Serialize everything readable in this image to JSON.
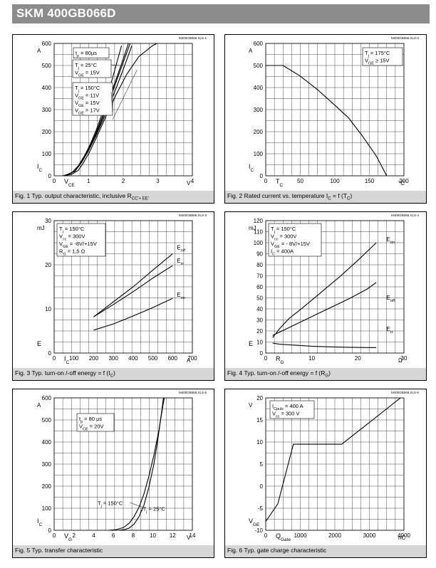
{
  "header": {
    "title": "SKM 400GB066D"
  },
  "chart_data": [
    {
      "id": "fig1",
      "type": "line",
      "file_ref": "M400GB066.XLS-1",
      "caption": "Fig. 1 Typ. output characteristic, inclusive R",
      "caption_sub": "CC'+ EE'",
      "xlim": [
        0,
        4
      ],
      "ylim": [
        0,
        600
      ],
      "xticks": [
        0,
        1,
        2,
        3,
        4
      ],
      "yticks": [
        0,
        100,
        200,
        300,
        400,
        500,
        600
      ],
      "xtick_labels": [
        "0",
        "1",
        "2",
        "3",
        "4"
      ],
      "ytick_labels": [
        "0",
        "100",
        "200",
        "300",
        "400",
        "500",
        "600"
      ],
      "xlabel_main": "V",
      "xlabel_sub": "CE",
      "xunit": "V",
      "ylabel_main": "I",
      "ylabel_sub": "C",
      "yunit": "A",
      "legend_boxes": [
        {
          "lines": [
            {
              "main": "t",
              "sub": "p",
              "rest": " = 80µs"
            }
          ]
        },
        {
          "lines": [
            {
              "main": "T",
              "sub": "j",
              "rest": " = 25°C"
            },
            {
              "main": "V",
              "sub": "GE",
              "rest": " = 15V"
            }
          ]
        },
        {
          "lines": [
            {
              "main": "T",
              "sub": "j",
              "rest": " = 150°C"
            },
            {
              "main": "V",
              "sub": "GE",
              "rest": " = 11V"
            },
            {
              "main": "V",
              "sub": "GE",
              "rest": " = 15V"
            },
            {
              "main": "V",
              "sub": "GE",
              "rest": " = 17V"
            }
          ]
        }
      ],
      "series": [
        {
          "points": [
            [
              0.25,
              0
            ],
            [
              0.5,
              6
            ],
            [
              0.7,
              25
            ],
            [
              0.85,
              60
            ],
            [
              1.0,
              100
            ],
            [
              1.2,
              165
            ],
            [
              1.5,
              270
            ],
            [
              1.8,
              370
            ],
            [
              2.1,
              460
            ],
            [
              2.45,
              540
            ],
            [
              2.85,
              590
            ],
            [
              3.2,
              618
            ]
          ]
        },
        {
          "points": [
            [
              0.3,
              0
            ],
            [
              0.6,
              22
            ],
            [
              0.8,
              62
            ],
            [
              1.0,
              115
            ],
            [
              1.2,
              178
            ],
            [
              1.4,
              248
            ],
            [
              1.6,
              322
            ],
            [
              1.8,
              400
            ],
            [
              2.0,
              482
            ],
            [
              2.25,
              590
            ]
          ]
        },
        {
          "points": [
            [
              0.3,
              0
            ],
            [
              0.6,
              20
            ],
            [
              0.8,
              62
            ],
            [
              1.0,
              117
            ],
            [
              1.2,
              184
            ],
            [
              1.4,
              260
            ],
            [
              1.6,
              342
            ],
            [
              1.8,
              428
            ],
            [
              2.0,
              515
            ],
            [
              2.2,
              600
            ]
          ]
        },
        {
          "points": [
            [
              0.3,
              0
            ],
            [
              0.6,
              22
            ],
            [
              0.8,
              64
            ],
            [
              1.0,
              120
            ],
            [
              1.2,
              190
            ],
            [
              1.4,
              270
            ],
            [
              1.6,
              355
            ],
            [
              1.8,
              440
            ],
            [
              2.0,
              530
            ],
            [
              2.15,
              600
            ]
          ]
        },
        {
          "points": [
            [
              0.25,
              0
            ],
            [
              0.5,
              12
            ],
            [
              0.7,
              45
            ],
            [
              0.9,
              97
            ],
            [
              1.05,
              145
            ],
            [
              1.2,
              200
            ],
            [
              1.35,
              265
            ],
            [
              1.5,
              340
            ],
            [
              1.65,
              420
            ],
            [
              1.8,
              505
            ],
            [
              1.95,
              590
            ]
          ]
        }
      ]
    },
    {
      "id": "fig2",
      "type": "line",
      "file_ref": "M400GB066.XLS-2",
      "caption": "Fig. 2 Rated current vs. temperature I",
      "caption_sub": "C",
      "caption_rest": " = f (T",
      "caption_sub2": "C",
      "caption_end": ")",
      "xlim": [
        0,
        200
      ],
      "ylim": [
        0,
        600
      ],
      "xticks": [
        0,
        50,
        100,
        150,
        200
      ],
      "yticks": [
        0,
        100,
        200,
        300,
        400,
        500,
        600
      ],
      "xtick_labels": [
        "0",
        "50",
        "100",
        "150",
        "200"
      ],
      "ytick_labels": [
        "0",
        "100",
        "200",
        "300",
        "400",
        "500",
        "600"
      ],
      "xlabel_main": "T",
      "xlabel_sub": "C",
      "xunit": "°C",
      "ylabel_main": "I",
      "ylabel_sub": "C",
      "yunit": "A",
      "legend_boxes": [
        {
          "lines": [
            {
              "main": "T",
              "sub": "j",
              "rest": " = 175°C"
            },
            {
              "main": "V",
              "sub": "GE",
              "rest": " ≥ 15V"
            }
          ]
        }
      ],
      "series": [
        {
          "points": [
            [
              0,
              500
            ],
            [
              25,
              500
            ],
            [
              50,
              452
            ],
            [
              75,
              390
            ],
            [
              100,
              320
            ],
            [
              120,
              262
            ],
            [
              140,
              180
            ],
            [
              160,
              90
            ],
            [
              175,
              0
            ]
          ]
        }
      ]
    },
    {
      "id": "fig3",
      "type": "line",
      "file_ref": "M400GB066.XLS-3",
      "caption": "Fig. 3 Typ. turn-on /-off energy = f (I",
      "caption_sub": "C",
      "caption_end": ")",
      "xlim": [
        0,
        700
      ],
      "ylim": [
        0,
        30
      ],
      "xticks": [
        0,
        100,
        200,
        300,
        400,
        500,
        600,
        700
      ],
      "yticks": [
        0,
        10,
        20,
        30
      ],
      "xtick_labels": [
        "0",
        "100",
        "200",
        "300",
        "400",
        "500",
        "600",
        "700"
      ],
      "ytick_labels": [
        "0",
        "10",
        "20",
        "30"
      ],
      "xlabel_main": "I",
      "xlabel_sub": "C",
      "xunit": "A",
      "ylabel_main": "E",
      "ylabel_sub": "",
      "yunit": "mJ",
      "legend_boxes": [
        {
          "lines": [
            {
              "main": "T",
              "sub": "j",
              "rest": " = 150°C"
            },
            {
              "main": "V",
              "sub": "cc",
              "rest": " = 300V"
            },
            {
              "main": "V",
              "sub": "GE",
              "rest": " = -8V/+15V"
            },
            {
              "main": "R",
              "sub": "G",
              "rest": " = 1,5 Ω"
            }
          ]
        }
      ],
      "series": [
        {
          "name": "E",
          "name_sub": "off",
          "points": [
            [
              200,
              8.2
            ],
            [
              300,
              11.6
            ],
            [
              400,
              15.0
            ],
            [
              500,
              18.8
            ],
            [
              600,
              22.5
            ]
          ]
        },
        {
          "name": "E",
          "name_sub": "rr",
          "points": [
            [
              200,
              8.2
            ],
            [
              300,
              11.0
            ],
            [
              400,
              13.9
            ],
            [
              500,
              17.0
            ],
            [
              600,
              19.8
            ]
          ]
        },
        {
          "name": "E",
          "name_sub": "on",
          "points": [
            [
              200,
              5.2
            ],
            [
              300,
              6.6
            ],
            [
              400,
              8.4
            ],
            [
              500,
              10.3
            ],
            [
              600,
              12.4
            ]
          ]
        }
      ]
    },
    {
      "id": "fig4",
      "type": "line",
      "file_ref": "M400GB066.XLS-4",
      "caption": "Fig. 4 Typ. turn-on /-off energy = f (R",
      "caption_sub": "G",
      "caption_end": ")",
      "xlim": [
        0,
        30
      ],
      "ylim": [
        0,
        120
      ],
      "xticks": [
        0,
        10,
        20,
        30
      ],
      "yticks": [
        0,
        10,
        20,
        30,
        40,
        50,
        60,
        70,
        80,
        90,
        100,
        110,
        120
      ],
      "xtick_labels": [
        "0",
        "10",
        "20",
        "30"
      ],
      "ytick_labels": [
        "0",
        "10",
        "20",
        "30",
        "40",
        "50",
        "60",
        "70",
        "80",
        "90",
        "100",
        "110",
        "120"
      ],
      "xlabel_main": "R",
      "xlabel_sub": "G",
      "xunit": "Ω",
      "ylabel_main": "E",
      "ylabel_sub": "",
      "yunit": "mJ",
      "legend_boxes": [
        {
          "lines": [
            {
              "main": "T",
              "sub": "j",
              "rest": " = 150°C"
            },
            {
              "main": "V",
              "sub": "cc",
              "rest": " = 300V"
            },
            {
              "main": "V",
              "sub": "GE",
              "rest": " = - 8V/+15V"
            },
            {
              "main": "I",
              "sub": "C",
              "rest": " = 400A"
            }
          ]
        }
      ],
      "series": [
        {
          "name": "E",
          "name_sub": "on",
          "points": [
            [
              1.5,
              14
            ],
            [
              3,
              22
            ],
            [
              5,
              31
            ],
            [
              8,
              41
            ],
            [
              12,
              55
            ],
            [
              16,
              69
            ],
            [
              20,
              84
            ],
            [
              24,
              100
            ]
          ]
        },
        {
          "name": "E",
          "name_sub": "off",
          "points": [
            [
              1.5,
              16
            ],
            [
              3,
              19
            ],
            [
              6,
              25
            ],
            [
              10,
              33
            ],
            [
              14,
              41
            ],
            [
              18,
              49
            ],
            [
              22,
              58
            ],
            [
              24,
              64
            ]
          ]
        },
        {
          "name": "E",
          "name_sub": "rr",
          "points": [
            [
              1.5,
              9
            ],
            [
              3,
              8
            ],
            [
              6,
              7.2
            ],
            [
              10,
              6.2
            ],
            [
              14,
              5.6
            ],
            [
              18,
              5.2
            ],
            [
              22,
              5.0
            ],
            [
              24,
              5.0
            ]
          ]
        }
      ]
    },
    {
      "id": "fig5",
      "type": "line",
      "file_ref": "M400GB066.XLS-5",
      "caption": "Fig. 5 Typ. transfer characteristic",
      "xlim": [
        0,
        14
      ],
      "ylim": [
        0,
        600
      ],
      "xticks": [
        0,
        2,
        4,
        6,
        8,
        10,
        12,
        14
      ],
      "yticks": [
        0,
        100,
        200,
        300,
        400,
        500,
        600
      ],
      "xtick_labels": [
        "0",
        "2",
        "4",
        "6",
        "8",
        "10",
        "12",
        "14"
      ],
      "ytick_labels": [
        "0",
        "100",
        "200",
        "300",
        "400",
        "500",
        "600"
      ],
      "xlabel_main": "V",
      "xlabel_sub": "G",
      "xunit": "V",
      "ylabel_main": "I",
      "ylabel_sub": "C",
      "yunit": "A",
      "legend_boxes": [
        {
          "lines": [
            {
              "main": "t",
              "sub": "p",
              "rest": " = 80 µs"
            },
            {
              "main": "V",
              "sub": "CE",
              "rest": " = 20V"
            }
          ]
        }
      ],
      "annotations": [
        {
          "main": "T",
          "sub": "j",
          "rest": " = 150°C"
        },
        {
          "main": "T",
          "sub": "j",
          "rest": " = 25°C"
        }
      ],
      "series": [
        {
          "points": [
            [
              5.5,
              0
            ],
            [
              6.3,
              3
            ],
            [
              7.0,
              12
            ],
            [
              7.6,
              32
            ],
            [
              8.1,
              62
            ],
            [
              8.6,
              105
            ],
            [
              9.1,
              165
            ],
            [
              9.6,
              245
            ],
            [
              10.1,
              340
            ],
            [
              10.6,
              450
            ],
            [
              11.0,
              560
            ],
            [
              11.2,
              610
            ]
          ]
        },
        {
          "points": [
            [
              6.5,
              0
            ],
            [
              7.1,
              3
            ],
            [
              7.6,
              10
            ],
            [
              8.1,
              28
            ],
            [
              8.6,
              62
            ],
            [
              9.1,
              115
            ],
            [
              9.6,
              195
            ],
            [
              10.1,
              300
            ],
            [
              10.5,
              410
            ],
            [
              10.9,
              540
            ],
            [
              11.1,
              610
            ]
          ]
        }
      ]
    },
    {
      "id": "fig6",
      "type": "line",
      "file_ref": "M400GB066.XLS-6",
      "caption": "Fig. 6 Typ. gate charge characteristic",
      "xlim": [
        0,
        4000
      ],
      "ylim": [
        -10,
        20
      ],
      "xticks": [
        0,
        1000,
        2000,
        3000,
        4000
      ],
      "yticks": [
        -10,
        -5,
        0,
        5,
        10,
        15,
        20
      ],
      "xtick_labels": [
        "0",
        "1000",
        "2000",
        "3000",
        "4000"
      ],
      "ytick_labels": [
        "-10",
        "-5",
        "0",
        "5",
        "10",
        "15",
        "20"
      ],
      "xlabel_main": "Q",
      "xlabel_sub": "Gate",
      "xunit": "nC",
      "ylabel_main": "V",
      "ylabel_sub": "GE",
      "yunit": "V",
      "legend_boxes": [
        {
          "lines": [
            {
              "main": "I",
              "sub": "Cpuls",
              "rest": " = 400 A"
            },
            {
              "main": "V",
              "sub": "cc",
              "rest": " = 300 V"
            }
          ]
        }
      ],
      "series": [
        {
          "points": [
            [
              0,
              -8
            ],
            [
              350,
              -4
            ],
            [
              800,
              9.5
            ],
            [
              2200,
              9.5
            ],
            [
              3900,
              20
            ]
          ]
        }
      ]
    }
  ]
}
